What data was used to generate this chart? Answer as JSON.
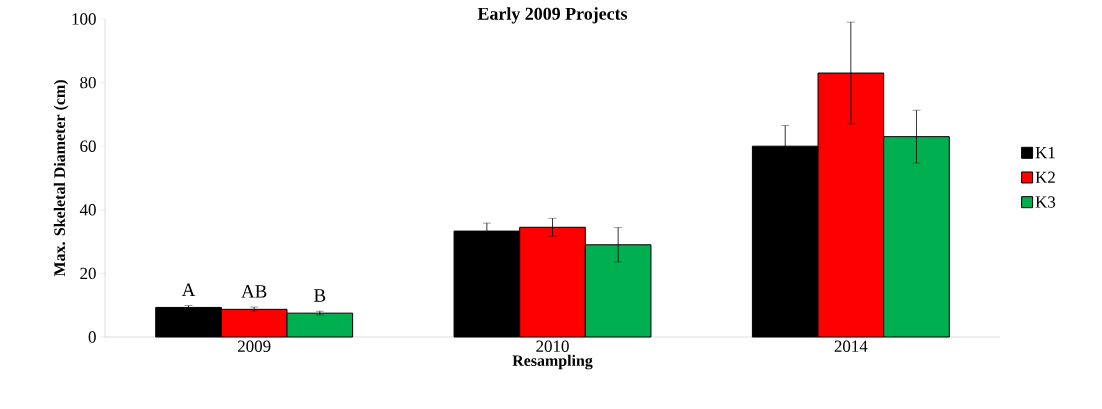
{
  "chart_data": {
    "type": "bar",
    "title": "Early 2009 Projects",
    "xlabel": "Resampling",
    "ylabel": "Max. Skeletal Diameter (cm)",
    "categories": [
      "2009",
      "2010",
      "2014"
    ],
    "series": [
      {
        "name": "K1",
        "color": "#000000",
        "values": [
          9.3,
          33.3,
          60
        ],
        "errors": [
          0.6,
          2.5,
          6.5
        ]
      },
      {
        "name": "K2",
        "color": "#ff0000",
        "values": [
          8.7,
          34.5,
          83
        ],
        "errors": [
          0.7,
          2.8,
          16
        ]
      },
      {
        "name": "K3",
        "color": "#00b050",
        "values": [
          7.5,
          29,
          63
        ],
        "errors": [
          0.6,
          5.4,
          8.3
        ]
      }
    ],
    "ylim": [
      0,
      100
    ],
    "yticks": [
      0,
      20,
      40,
      60,
      80,
      100
    ],
    "grid": false,
    "legend": "right",
    "annotations": [
      "A",
      "AB",
      "B"
    ]
  }
}
